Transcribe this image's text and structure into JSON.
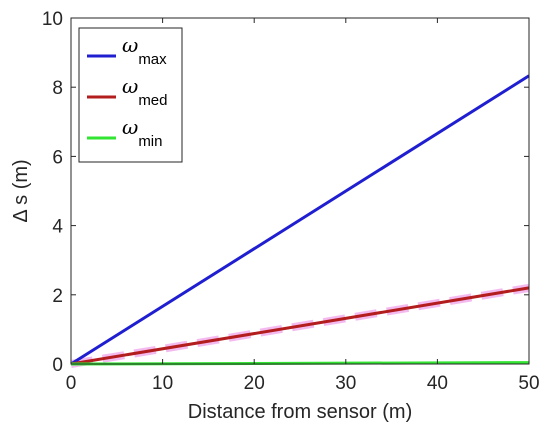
{
  "chart_data": {
    "type": "line",
    "xlabel": "Distance from sensor (m)",
    "ylabel": "Δ s (m)",
    "xlim": [
      0,
      50
    ],
    "ylim": [
      0,
      10
    ],
    "x_ticks": [
      0,
      10,
      20,
      30,
      40,
      50
    ],
    "y_ticks": [
      0,
      2,
      4,
      6,
      8,
      10
    ],
    "grid": false,
    "legend_position": "top-left",
    "series": [
      {
        "name": "max",
        "symbol": "ω",
        "color": "#1f1fd1",
        "x": [
          0,
          50
        ],
        "y": [
          0,
          8.33
        ]
      },
      {
        "name": "med",
        "symbol": "ω",
        "color": "#b31d1d",
        "x": [
          0,
          50
        ],
        "y": [
          0,
          2.2
        ]
      },
      {
        "name": "min",
        "symbol": "ω",
        "color": "#33e533",
        "x": [
          0,
          50
        ],
        "y": [
          0,
          0.04
        ]
      }
    ]
  }
}
